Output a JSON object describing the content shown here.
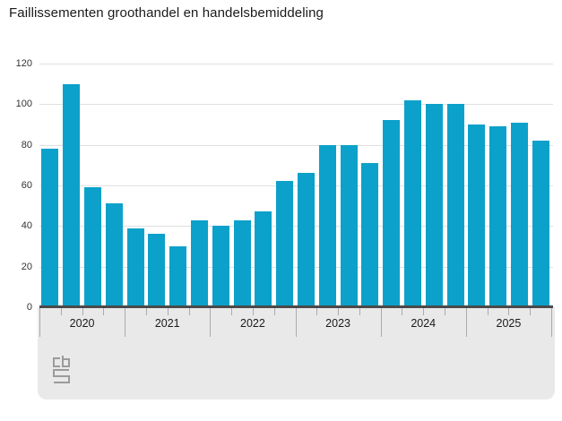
{
  "title": "Faillissementen groothandel en handelsbemiddeling",
  "chart_data": {
    "type": "bar",
    "title": "Faillissementen groothandel en handelsbemiddeling",
    "years": [
      "2020",
      "2021",
      "2022",
      "2023",
      "2024",
      "2025"
    ],
    "quarters_per_year": 4,
    "categories": [
      "2020-Q1",
      "2020-Q2",
      "2020-Q3",
      "2020-Q4",
      "2021-Q1",
      "2021-Q2",
      "2021-Q3",
      "2021-Q4",
      "2022-Q1",
      "2022-Q2",
      "2022-Q3",
      "2022-Q4",
      "2023-Q1",
      "2023-Q2",
      "2023-Q3",
      "2023-Q4",
      "2024-Q1",
      "2024-Q2",
      "2024-Q3",
      "2024-Q4",
      "2025-Q1",
      "2025-Q2",
      "2025-Q3",
      "2025-Q4"
    ],
    "values": [
      78,
      110,
      59,
      51,
      39,
      36,
      30,
      43,
      40,
      43,
      47,
      62,
      66,
      80,
      80,
      71,
      92,
      102,
      100,
      100,
      90,
      89,
      91,
      82
    ],
    "y_ticks": [
      0,
      20,
      40,
      60,
      80,
      100,
      120
    ],
    "ylim": [
      0,
      120
    ],
    "xlabel": "",
    "ylabel": "",
    "grid": true,
    "legend_position": "none"
  },
  "style": {
    "bar_color": "#0ca1ca",
    "grid_color": "#e0e0e0",
    "axis_line_color": "#4a4a4a",
    "band_color": "#e9e9e9",
    "tick_color": "#ababab",
    "text_color": "#1a1a1a",
    "ytick_color": "#333333",
    "logo_color": "#9b9b9b"
  },
  "logo": {
    "name": "cbs-logo"
  }
}
